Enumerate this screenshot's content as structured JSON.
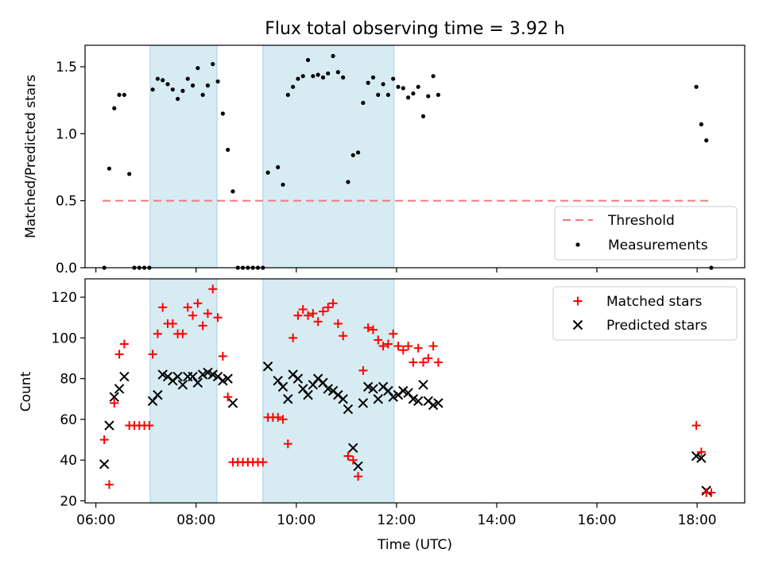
{
  "chart_data": [
    {
      "type": "scatter",
      "title": "Flux total observing time = 3.92 h",
      "xlabel": "",
      "ylabel": "Matched/Predicted stars",
      "xlim": [
        "05:47",
        "18:57"
      ],
      "ylim": [
        0,
        1.66
      ],
      "yticks": [
        0.0,
        0.5,
        1.0,
        1.5
      ],
      "ytick_labels": [
        "0.0",
        "0.5",
        "1.0",
        "1.5"
      ],
      "grid": false,
      "legend_position": "lower-right",
      "shaded_intervals": [
        [
          "07:05",
          "08:25"
        ],
        [
          "09:20",
          "11:57"
        ]
      ],
      "threshold": {
        "name": "Threshold",
        "value": 0.5,
        "x_start": "06:08",
        "x_end": "18:17",
        "color": "#f08080"
      },
      "series": [
        {
          "name": "Measurements",
          "color": "#000000",
          "marker": "dot",
          "points": [
            [
              "06:10",
              0.0
            ],
            [
              "06:16",
              0.74
            ],
            [
              "06:22",
              1.19
            ],
            [
              "06:28",
              1.29
            ],
            [
              "06:34",
              1.29
            ],
            [
              "06:40",
              0.7
            ],
            [
              "06:46",
              0.0
            ],
            [
              "06:52",
              0.0
            ],
            [
              "06:58",
              0.0
            ],
            [
              "07:04",
              0.0
            ],
            [
              "07:08",
              1.33
            ],
            [
              "07:14",
              1.41
            ],
            [
              "07:20",
              1.4
            ],
            [
              "07:26",
              1.37
            ],
            [
              "07:32",
              1.33
            ],
            [
              "07:38",
              1.26
            ],
            [
              "07:44",
              1.32
            ],
            [
              "07:50",
              1.41
            ],
            [
              "07:56",
              1.36
            ],
            [
              "08:02",
              1.49
            ],
            [
              "08:08",
              1.29
            ],
            [
              "08:14",
              1.36
            ],
            [
              "08:20",
              1.52
            ],
            [
              "08:26",
              1.39
            ],
            [
              "08:32",
              1.15
            ],
            [
              "08:38",
              0.88
            ],
            [
              "08:44",
              0.57
            ],
            [
              "08:50",
              0.0
            ],
            [
              "08:56",
              0.0
            ],
            [
              "09:02",
              0.0
            ],
            [
              "09:08",
              0.0
            ],
            [
              "09:14",
              0.0
            ],
            [
              "09:20",
              0.0
            ],
            [
              "09:26",
              0.71
            ],
            [
              "09:38",
              0.75
            ],
            [
              "09:44",
              0.62
            ],
            [
              "09:50",
              1.29
            ],
            [
              "09:56",
              1.35
            ],
            [
              "10:02",
              1.41
            ],
            [
              "10:08",
              1.43
            ],
            [
              "10:14",
              1.55
            ],
            [
              "10:20",
              1.43
            ],
            [
              "10:26",
              1.44
            ],
            [
              "10:32",
              1.42
            ],
            [
              "10:38",
              1.45
            ],
            [
              "10:44",
              1.58
            ],
            [
              "10:50",
              1.46
            ],
            [
              "10:56",
              1.42
            ],
            [
              "11:02",
              0.64
            ],
            [
              "11:08",
              0.84
            ],
            [
              "11:14",
              0.86
            ],
            [
              "11:20",
              1.23
            ],
            [
              "11:26",
              1.38
            ],
            [
              "11:32",
              1.42
            ],
            [
              "11:38",
              1.29
            ],
            [
              "11:44",
              1.37
            ],
            [
              "11:50",
              1.29
            ],
            [
              "11:56",
              1.41
            ],
            [
              "12:02",
              1.35
            ],
            [
              "12:08",
              1.34
            ],
            [
              "12:14",
              1.27
            ],
            [
              "12:20",
              1.3
            ],
            [
              "12:26",
              1.35
            ],
            [
              "12:32",
              1.13
            ],
            [
              "12:38",
              1.28
            ],
            [
              "12:44",
              1.43
            ],
            [
              "12:50",
              1.29
            ],
            [
              "17:59",
              1.35
            ],
            [
              "18:05",
              1.07
            ],
            [
              "18:11",
              0.95
            ],
            [
              "18:17",
              0.0
            ]
          ]
        }
      ]
    },
    {
      "type": "scatter",
      "title": "",
      "xlabel": "Time (UTC)",
      "ylabel": "Count",
      "xlim": [
        "05:47",
        "18:57"
      ],
      "ylim": [
        19,
        129
      ],
      "yticks": [
        20,
        40,
        60,
        80,
        100,
        120
      ],
      "ytick_labels": [
        "20",
        "40",
        "60",
        "80",
        "100",
        "120"
      ],
      "xticks": [
        "06:00",
        "08:00",
        "10:00",
        "12:00",
        "14:00",
        "16:00",
        "18:00"
      ],
      "xtick_labels": [
        "06:00",
        "08:00",
        "10:00",
        "12:00",
        "14:00",
        "16:00",
        "18:00"
      ],
      "grid": false,
      "legend_position": "top-right",
      "shaded_intervals": [
        [
          "07:05",
          "08:25"
        ],
        [
          "09:20",
          "11:57"
        ]
      ],
      "series": [
        {
          "name": "Matched stars",
          "color": "#ff0000",
          "marker": "plus",
          "points": [
            [
              "06:10",
              50
            ],
            [
              "06:16",
              28
            ],
            [
              "06:22",
              68
            ],
            [
              "06:28",
              92
            ],
            [
              "06:34",
              97
            ],
            [
              "06:40",
              57
            ],
            [
              "06:46",
              57
            ],
            [
              "06:52",
              57
            ],
            [
              "06:58",
              57
            ],
            [
              "07:04",
              57
            ],
            [
              "07:08",
              92
            ],
            [
              "07:14",
              102
            ],
            [
              "07:20",
              115
            ],
            [
              "07:26",
              107
            ],
            [
              "07:32",
              107
            ],
            [
              "07:38",
              102
            ],
            [
              "07:44",
              102
            ],
            [
              "07:50",
              115
            ],
            [
              "07:56",
              111
            ],
            [
              "08:02",
              117
            ],
            [
              "08:08",
              106
            ],
            [
              "08:14",
              112
            ],
            [
              "08:20",
              124
            ],
            [
              "08:26",
              110
            ],
            [
              "08:32",
              91
            ],
            [
              "08:38",
              71
            ],
            [
              "08:44",
              39
            ],
            [
              "08:50",
              39
            ],
            [
              "08:56",
              39
            ],
            [
              "09:02",
              39
            ],
            [
              "09:08",
              39
            ],
            [
              "09:14",
              39
            ],
            [
              "09:20",
              39
            ],
            [
              "09:26",
              61
            ],
            [
              "09:32",
              61
            ],
            [
              "09:38",
              61
            ],
            [
              "09:44",
              60
            ],
            [
              "09:50",
              48
            ],
            [
              "09:56",
              100
            ],
            [
              "10:02",
              111
            ],
            [
              "10:08",
              114
            ],
            [
              "10:14",
              111
            ],
            [
              "10:20",
              112
            ],
            [
              "10:26",
              108
            ],
            [
              "10:32",
              113
            ],
            [
              "10:38",
              115
            ],
            [
              "10:44",
              117
            ],
            [
              "10:50",
              107
            ],
            [
              "10:56",
              101
            ],
            [
              "11:02",
              42
            ],
            [
              "11:08",
              40
            ],
            [
              "11:14",
              32
            ],
            [
              "11:20",
              84
            ],
            [
              "11:26",
              105
            ],
            [
              "11:32",
              104
            ],
            [
              "11:38",
              99
            ],
            [
              "11:44",
              96
            ],
            [
              "11:50",
              97
            ],
            [
              "11:56",
              102
            ],
            [
              "12:02",
              96
            ],
            [
              "12:08",
              94
            ],
            [
              "12:14",
              96
            ],
            [
              "12:20",
              88
            ],
            [
              "12:26",
              95
            ],
            [
              "12:32",
              88
            ],
            [
              "12:38",
              90
            ],
            [
              "12:44",
              96
            ],
            [
              "12:50",
              88
            ],
            [
              "17:59",
              57
            ],
            [
              "18:05",
              44
            ],
            [
              "18:11",
              24
            ],
            [
              "18:17",
              24
            ]
          ]
        },
        {
          "name": "Predicted stars",
          "color": "#000000",
          "marker": "x",
          "points": [
            [
              "06:10",
              38
            ],
            [
              "06:16",
              57
            ],
            [
              "06:22",
              71
            ],
            [
              "06:28",
              75
            ],
            [
              "06:34",
              81
            ],
            [
              "07:08",
              69
            ],
            [
              "07:14",
              72
            ],
            [
              "07:20",
              82
            ],
            [
              "07:26",
              81
            ],
            [
              "07:32",
              79
            ],
            [
              "07:38",
              81
            ],
            [
              "07:44",
              77
            ],
            [
              "07:50",
              81
            ],
            [
              "07:56",
              81
            ],
            [
              "08:02",
              78
            ],
            [
              "08:08",
              82
            ],
            [
              "08:14",
              83
            ],
            [
              "08:20",
              82
            ],
            [
              "08:26",
              81
            ],
            [
              "08:32",
              79
            ],
            [
              "08:38",
              80
            ],
            [
              "08:44",
              68
            ],
            [
              "09:26",
              86
            ],
            [
              "09:38",
              79
            ],
            [
              "09:44",
              76
            ],
            [
              "09:50",
              70
            ],
            [
              "09:56",
              82
            ],
            [
              "10:02",
              80
            ],
            [
              "10:08",
              75
            ],
            [
              "10:14",
              72
            ],
            [
              "10:20",
              77
            ],
            [
              "10:26",
              80
            ],
            [
              "10:32",
              78
            ],
            [
              "10:38",
              75
            ],
            [
              "10:44",
              74
            ],
            [
              "10:50",
              72
            ],
            [
              "10:56",
              70
            ],
            [
              "11:02",
              65
            ],
            [
              "11:08",
              46
            ],
            [
              "11:14",
              37
            ],
            [
              "11:20",
              68
            ],
            [
              "11:26",
              76
            ],
            [
              "11:32",
              75
            ],
            [
              "11:38",
              70
            ],
            [
              "11:44",
              76
            ],
            [
              "11:50",
              74
            ],
            [
              "11:56",
              71
            ],
            [
              "12:02",
              72
            ],
            [
              "12:08",
              74
            ],
            [
              "12:14",
              73
            ],
            [
              "12:20",
              70
            ],
            [
              "12:26",
              69
            ],
            [
              "12:32",
              77
            ],
            [
              "12:38",
              69
            ],
            [
              "12:44",
              67
            ],
            [
              "12:50",
              68
            ],
            [
              "17:59",
              42
            ],
            [
              "18:05",
              41
            ],
            [
              "18:11",
              25
            ]
          ]
        }
      ]
    }
  ]
}
